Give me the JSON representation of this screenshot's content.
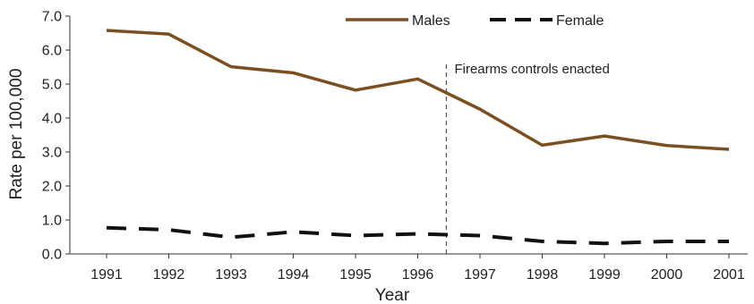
{
  "chart_data": {
    "type": "line",
    "title": "",
    "xlabel": "Year",
    "ylabel": "Rate per 100,000",
    "categories": [
      "1991",
      "1992",
      "1993",
      "1994",
      "1995",
      "1996",
      "1997",
      "1998",
      "1999",
      "2000",
      "2001"
    ],
    "yticks": [
      "0.0",
      "1.0",
      "2.0",
      "3.0",
      "4.0",
      "5.0",
      "6.0",
      "7.0"
    ],
    "ylim": [
      0,
      7
    ],
    "grid": false,
    "legend_position": "top-right",
    "series": [
      {
        "name": "Males",
        "color": "#7a4f22",
        "style": "solid",
        "values": [
          6.58,
          6.47,
          5.51,
          5.33,
          4.82,
          5.15,
          4.26,
          3.2,
          3.47,
          3.19,
          3.08
        ]
      },
      {
        "name": "Female",
        "color": "#111111",
        "style": "dashed",
        "values": [
          0.77,
          0.71,
          0.49,
          0.65,
          0.54,
          0.59,
          0.54,
          0.37,
          0.31,
          0.37,
          0.37
        ]
      }
    ],
    "annotation": {
      "text": "Firearms controls enacted",
      "x_after_category": "1996"
    }
  }
}
